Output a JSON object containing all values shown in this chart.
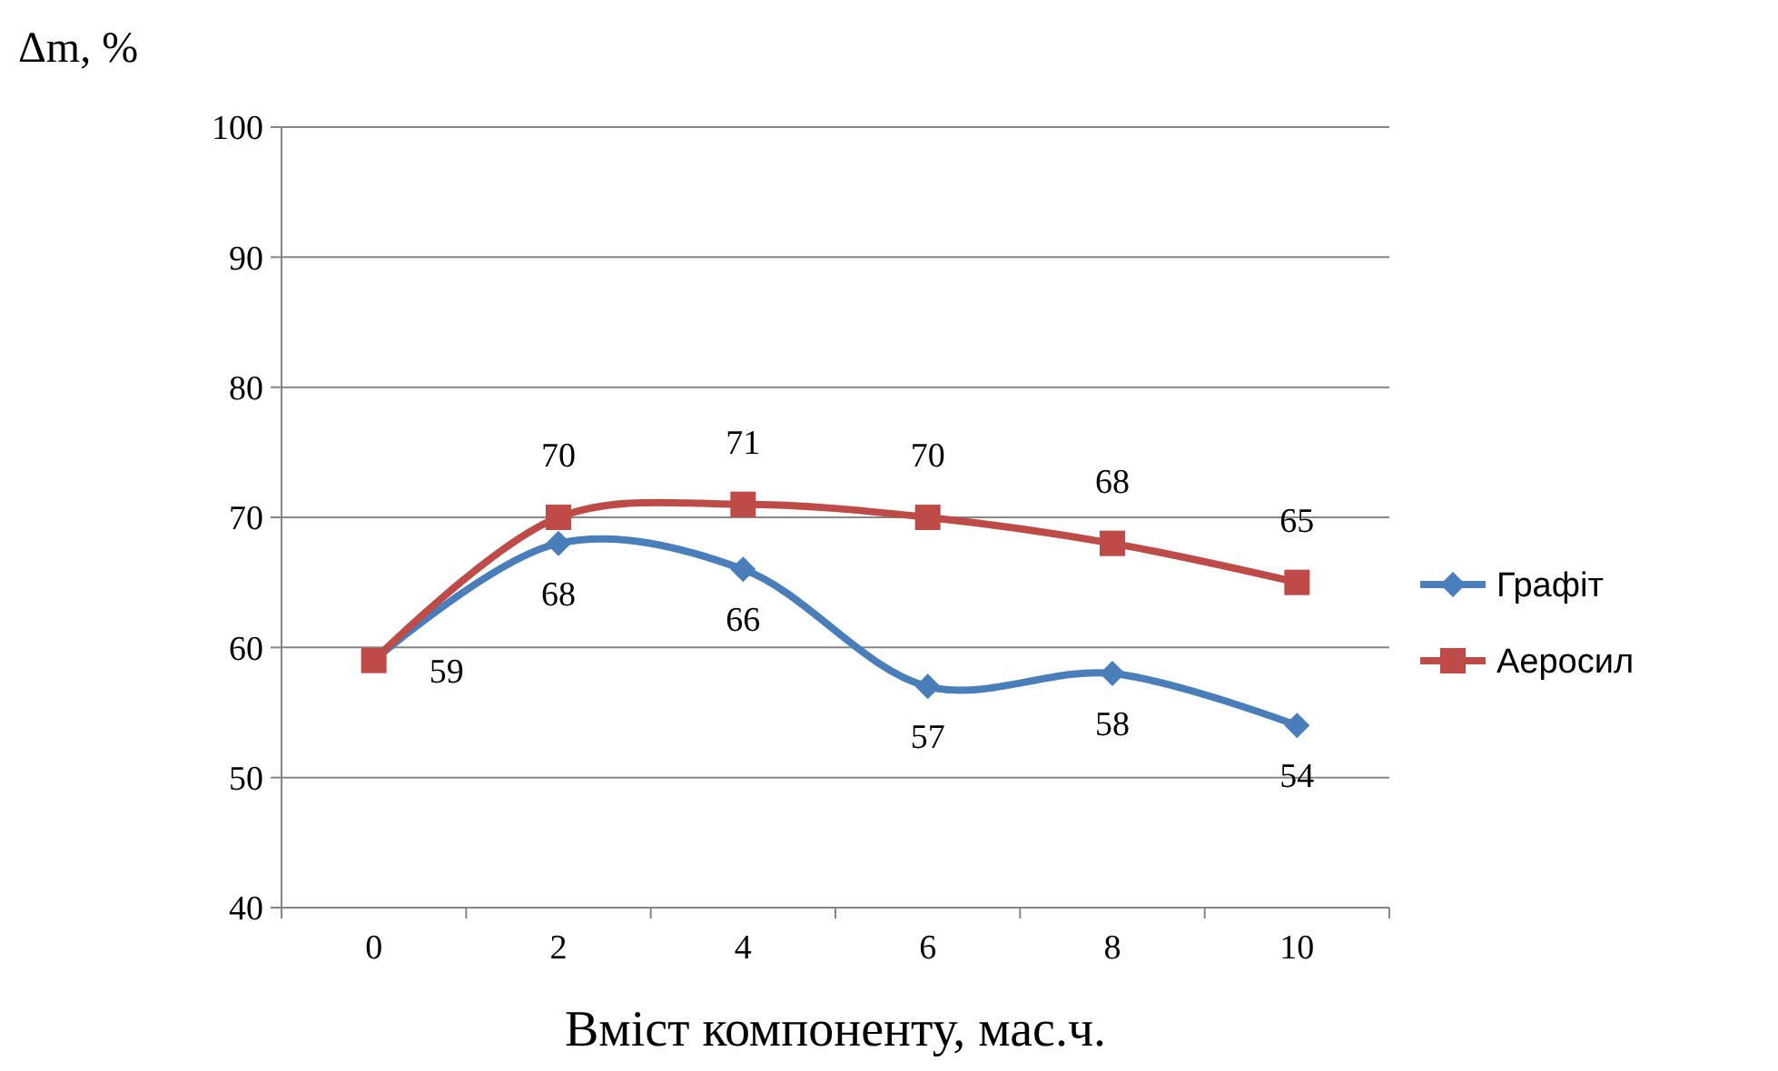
{
  "chart_data": {
    "type": "line",
    "ylabel": "Δm, %",
    "xlabel": "Вміст компоненту, мас.ч.",
    "categories": [
      "0",
      "2",
      "4",
      "6",
      "8",
      "10"
    ],
    "series": [
      {
        "name": "Графіт",
        "color": "#4a7ebb",
        "marker": "diamond",
        "values": [
          59,
          68,
          66,
          57,
          58,
          54
        ],
        "value_labels": [
          "59",
          "68",
          "66",
          "57",
          "58",
          "54"
        ]
      },
      {
        "name": "Аеросил",
        "color": "#be4b48",
        "marker": "square",
        "values": [
          59,
          70,
          71,
          70,
          68,
          65
        ],
        "value_labels": [
          null,
          "70",
          "71",
          "70",
          "68",
          "65"
        ]
      }
    ],
    "ylim": [
      40,
      100
    ],
    "yticks": [
      40,
      50,
      60,
      70,
      80,
      90,
      100
    ],
    "grid": "y",
    "legend": "right"
  }
}
